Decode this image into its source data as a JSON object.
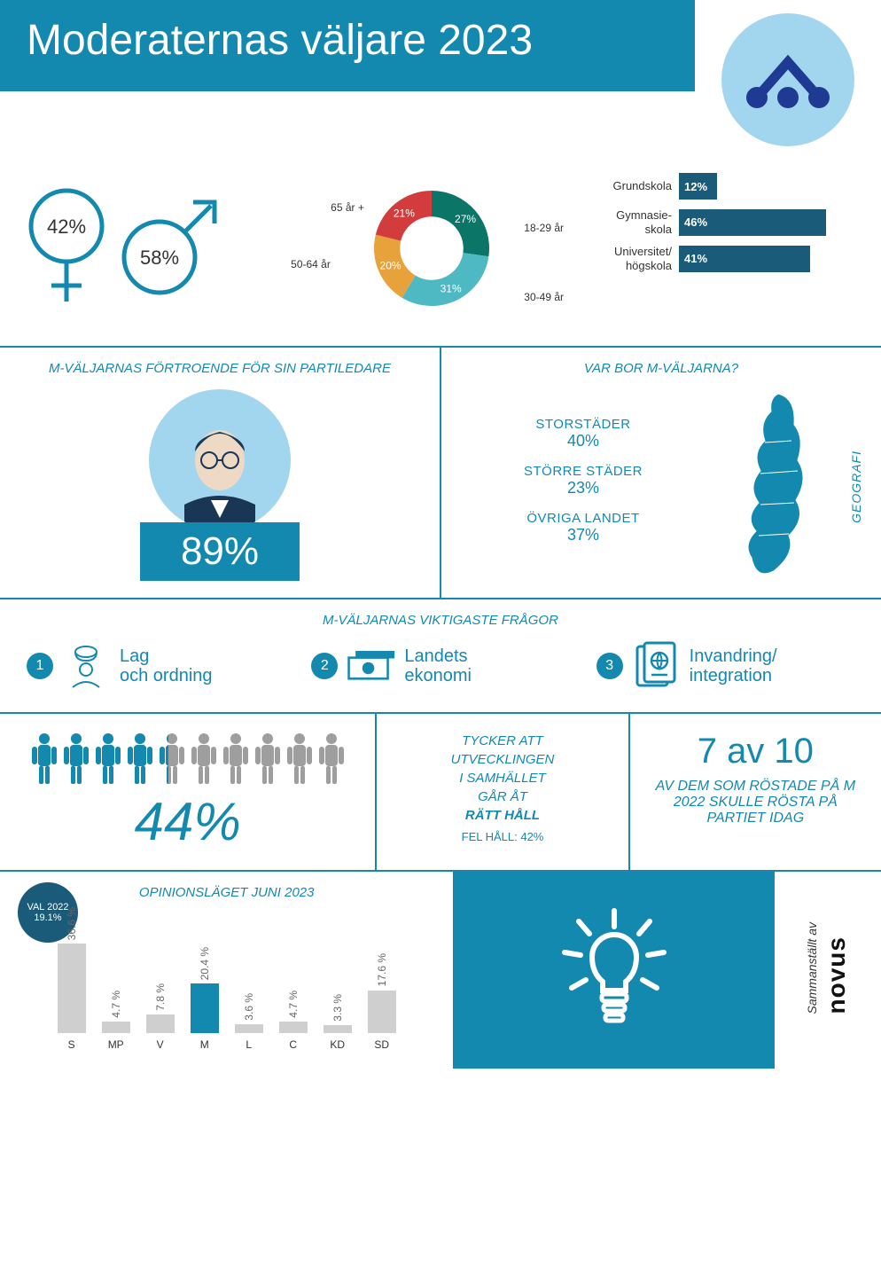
{
  "header": {
    "title": "Moderaternas väljare 2023",
    "logo_bg": "#a2d6ee",
    "logo_fg": "#1f3a93"
  },
  "colors": {
    "primary": "#1389b0",
    "dark": "#1a5b7a",
    "light": "#a2d6ee",
    "grey": "#cfcfcf",
    "people_grey": "#9e9e9e"
  },
  "gender": {
    "female": "42%",
    "male": "58%"
  },
  "donut": {
    "slices": [
      {
        "label": "18-29 år",
        "pct": "27%",
        "value": 27,
        "color": "#0b7567"
      },
      {
        "label": "30-49 år",
        "pct": "31%",
        "value": 31,
        "color": "#4fb9c3"
      },
      {
        "label": "50-64 år",
        "pct": "20%",
        "value": 20,
        "color": "#e8a23b"
      },
      {
        "label": "65 år +",
        "pct": "21%",
        "value": 21,
        "color": "#d23c3c"
      }
    ],
    "inner_ratio": 0.55
  },
  "education": {
    "max": 50,
    "bar_color": "#1a5b7a",
    "rows": [
      {
        "label": "Grundskola",
        "pct": "12%",
        "value": 12
      },
      {
        "label": "Gymnasie-\nskola",
        "pct": "46%",
        "value": 46
      },
      {
        "label": "Universitet/\nhögskola",
        "pct": "41%",
        "value": 41
      }
    ]
  },
  "leader": {
    "title": "M-VÄLJARNAS FÖRTROENDE FÖR SIN PARTILEDARE",
    "pct": "89%"
  },
  "geo": {
    "title": "VAR BOR M-VÄLJARNA?",
    "side_label": "GEOGRAFI",
    "items": [
      {
        "name": "STORSTÄDER",
        "pct": "40%"
      },
      {
        "name": "STÖRRE STÄDER",
        "pct": "23%"
      },
      {
        "name": "ÖVRIGA LANDET",
        "pct": "37%"
      }
    ]
  },
  "issues": {
    "title": "M-VÄLJARNAS VIKTIGASTE FRÅGOR",
    "items": [
      {
        "n": "1",
        "text": "Lag och ordning",
        "icon": "police"
      },
      {
        "n": "2",
        "text": "Landets ekonomi",
        "icon": "money"
      },
      {
        "n": "3",
        "text": "Invandring/ integration",
        "icon": "passport"
      }
    ]
  },
  "sentiment": {
    "people_total": 10,
    "people_filled": 4.4,
    "big_pct": "44%",
    "text_lines": [
      "TYCKER ATT",
      "UTVECKLINGEN",
      "I SAMHÄLLET",
      "GÅR ÅT"
    ],
    "bold_line": "RÄTT HÅLL",
    "sub_line": "FEL HÅLL: 42%",
    "loyalty_big": "7 av 10",
    "loyalty_sub": "AV DEM SOM RÖSTADE PÅ M 2022 SKULLE RÖSTA PÅ PARTIET IDAG"
  },
  "poll": {
    "title": "OPINIONSLÄGET JUNI 2023",
    "badge_line1": "VAL 2022",
    "badge_line2": "19.1%",
    "max": 40,
    "grey": "#cfcfcf",
    "highlight": "#1389b0",
    "bars": [
      {
        "label": "S",
        "pct": "36.6 %",
        "value": 36.6,
        "hl": false
      },
      {
        "label": "MP",
        "pct": "4.7 %",
        "value": 4.7,
        "hl": false
      },
      {
        "label": "V",
        "pct": "7.8 %",
        "value": 7.8,
        "hl": false
      },
      {
        "label": "M",
        "pct": "20.4 %",
        "value": 20.4,
        "hl": true
      },
      {
        "label": "L",
        "pct": "3.6 %",
        "value": 3.6,
        "hl": false
      },
      {
        "label": "C",
        "pct": "4.7 %",
        "value": 4.7,
        "hl": false
      },
      {
        "label": "KD",
        "pct": "3.3 %",
        "value": 3.3,
        "hl": false
      },
      {
        "label": "SD",
        "pct": "17.6 %",
        "value": 17.6,
        "hl": false
      }
    ]
  },
  "credit": {
    "prefix": "Sammanställt av",
    "brand": "novus"
  }
}
